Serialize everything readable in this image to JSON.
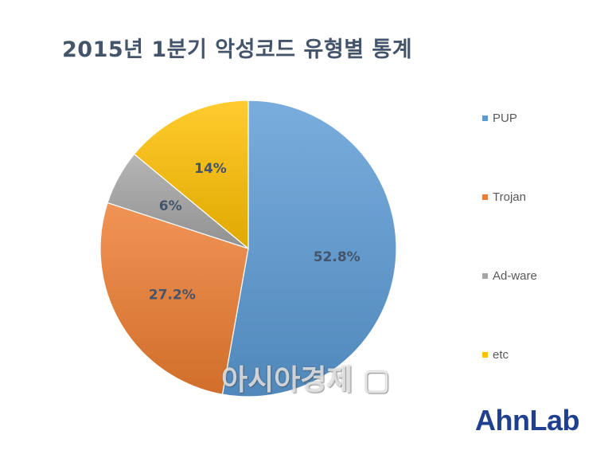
{
  "title": "2015년 1분기 악성코드 유형별 통계",
  "watermark": "아시아경제 ▢",
  "logo": "AhnLab",
  "colors": {
    "pup": "#5b9bd5",
    "trojan": "#ed7d31",
    "adware": "#a5a5a5",
    "etc": "#ffc000"
  },
  "chart_data": {
    "type": "pie",
    "title": "2015년 1분기 악성코드 유형별 통계",
    "legend_position": "right",
    "slices": [
      {
        "label": "PUP",
        "value": 52.8,
        "display": "52.8%",
        "color": "#5b9bd5"
      },
      {
        "label": "Trojan",
        "value": 27.2,
        "display": "27.2%",
        "color": "#ed7d31"
      },
      {
        "label": "Ad-ware",
        "value": 6,
        "display": "6%",
        "color": "#a5a5a5"
      },
      {
        "label": "etc",
        "value": 14,
        "display": "14%",
        "color": "#ffc000"
      }
    ]
  }
}
